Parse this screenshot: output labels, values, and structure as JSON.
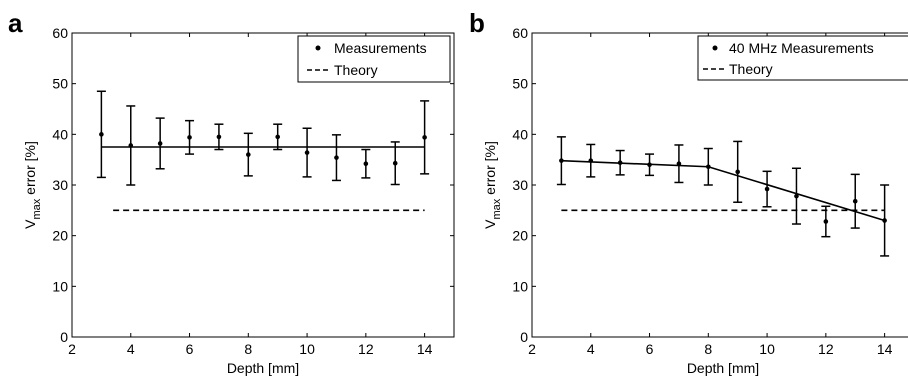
{
  "chart_data": [
    {
      "type": "scatter",
      "panel_label": "a",
      "xlabel": "Depth [mm]",
      "ylabel": "V",
      "ylabel_sub": "max",
      "ylabel_rest": " error [%]",
      "xlim": [
        2,
        15
      ],
      "ylim": [
        0,
        60
      ],
      "xticks": [
        2,
        4,
        6,
        8,
        10,
        12,
        14
      ],
      "yticks": [
        0,
        10,
        20,
        30,
        40,
        50,
        60
      ],
      "legend": {
        "placement": "top-right",
        "entries": [
          "Measurements",
          "Theory"
        ]
      },
      "series": [
        {
          "name": "Measurements",
          "style": "points-errorbars",
          "x": [
            3,
            4,
            5,
            6,
            7,
            8,
            9,
            10,
            11,
            12,
            13,
            14
          ],
          "y": [
            40,
            37.8,
            38.2,
            39.4,
            39.5,
            36,
            39.5,
            36.4,
            35.4,
            34.2,
            34.3,
            39.4
          ],
          "err": [
            8.5,
            7.8,
            5,
            3.3,
            2.5,
            4.2,
            2.5,
            4.8,
            4.5,
            2.8,
            4.2,
            7.2
          ]
        },
        {
          "name": "",
          "style": "solid",
          "x": [
            3,
            14
          ],
          "y": [
            37.5,
            37.5
          ]
        },
        {
          "name": "Theory",
          "style": "dashed",
          "x": [
            3.4,
            14
          ],
          "y": [
            25,
            25
          ]
        }
      ]
    },
    {
      "type": "scatter",
      "panel_label": "b",
      "xlabel": "Depth [mm]",
      "ylabel": "V",
      "ylabel_sub": "max",
      "ylabel_rest": " error [%]",
      "xlim": [
        2,
        15
      ],
      "ylim": [
        0,
        60
      ],
      "xticks": [
        2,
        4,
        6,
        8,
        10,
        12,
        14
      ],
      "yticks": [
        0,
        10,
        20,
        30,
        40,
        50,
        60
      ],
      "legend": {
        "placement": "top-right",
        "entries": [
          "40 MHz Measurements",
          "Theory"
        ]
      },
      "series": [
        {
          "name": "40 MHz Measurements",
          "style": "points-errorbars",
          "x": [
            3,
            4,
            5,
            6,
            7,
            8,
            9,
            10,
            11,
            12,
            13,
            14
          ],
          "y": [
            34.8,
            34.8,
            34.4,
            34,
            34.2,
            33.6,
            32.6,
            29.2,
            27.8,
            22.8,
            26.8,
            23
          ],
          "err": [
            4.7,
            3.2,
            2.4,
            2.1,
            3.7,
            3.6,
            6,
            3.5,
            5.5,
            3,
            5.3,
            7
          ]
        },
        {
          "name": "",
          "style": "solid",
          "x": [
            3,
            8,
            14
          ],
          "y": [
            34.8,
            33.6,
            23
          ]
        },
        {
          "name": "Theory",
          "style": "dashed",
          "x": [
            3,
            14
          ],
          "y": [
            25,
            25
          ]
        }
      ]
    }
  ]
}
